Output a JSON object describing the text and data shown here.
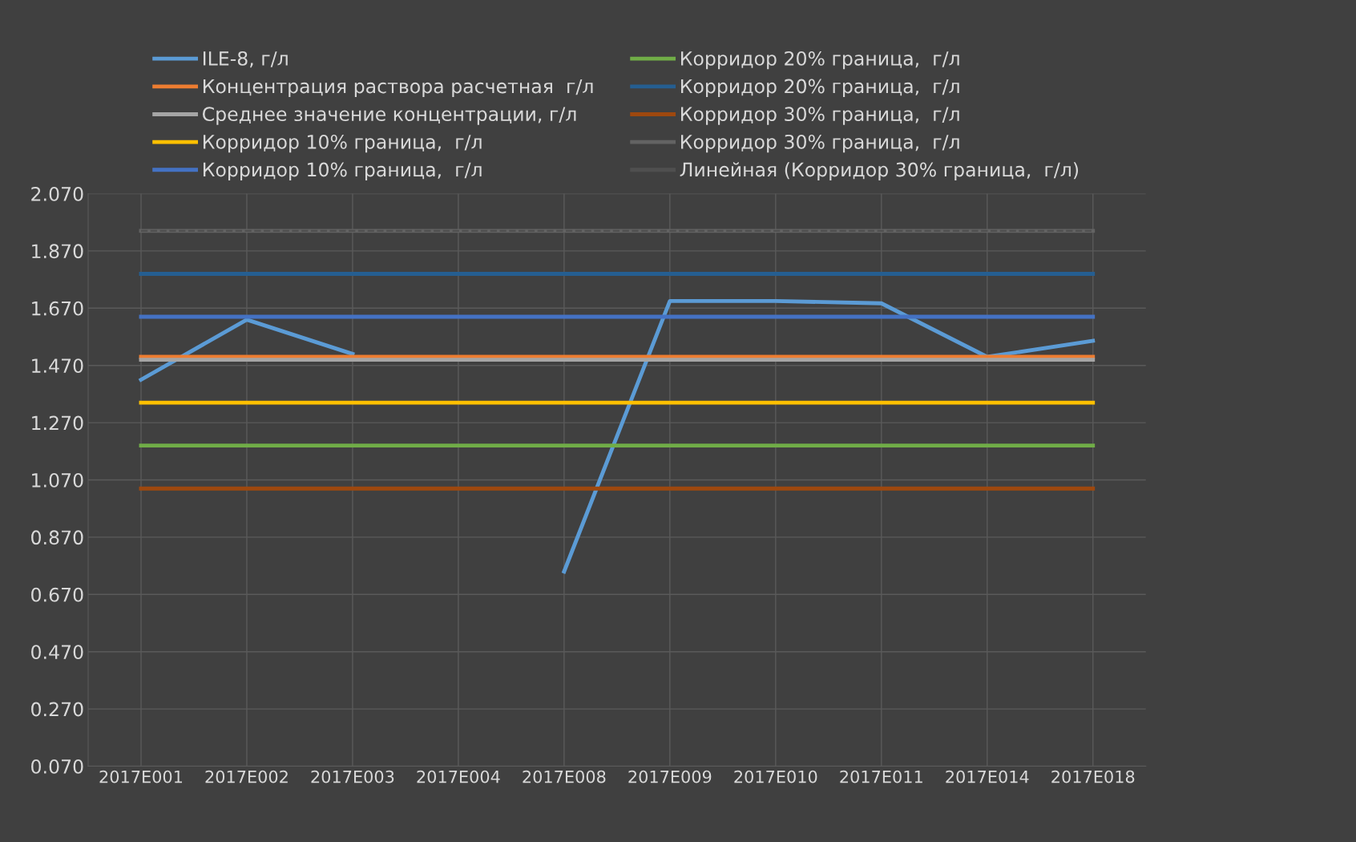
{
  "chart_data": {
    "type": "line",
    "categories": [
      "2017E001",
      "2017E002",
      "2017E003",
      "2017E004",
      "2017E008",
      "2017E009",
      "2017E010",
      "2017E011",
      "2017E014",
      "2017E018"
    ],
    "series": [
      {
        "name": "ILE-8, г/л",
        "color": "#5b9bd5",
        "values": [
          1.42,
          1.63,
          1.51,
          null,
          0.75,
          1.695,
          1.695,
          1.687,
          1.5,
          1.556
        ]
      },
      {
        "name": "Концентрация раствора расчетная  г/л",
        "color": "#ed7d31",
        "values": [
          1.5,
          1.5,
          1.5,
          1.5,
          1.5,
          1.5,
          1.5,
          1.5,
          1.5,
          1.5
        ]
      },
      {
        "name": "Среднее значение концентрации, г/л",
        "color": "#a5a5a5",
        "values": [
          1.49,
          1.49,
          1.49,
          1.49,
          1.49,
          1.49,
          1.49,
          1.49,
          1.49,
          1.49
        ]
      },
      {
        "name": "Корридор 10% граница,  г/л",
        "color": "#ffc000",
        "values": [
          1.34,
          1.34,
          1.34,
          1.34,
          1.34,
          1.34,
          1.34,
          1.34,
          1.34,
          1.34
        ]
      },
      {
        "name": "Корридор 10% граница,  г/л",
        "color": "#4472c4",
        "values": [
          1.64,
          1.64,
          1.64,
          1.64,
          1.64,
          1.64,
          1.64,
          1.64,
          1.64,
          1.64
        ]
      },
      {
        "name": "Корридор 20% граница,  г/л",
        "color": "#70ad47",
        "values": [
          1.19,
          1.19,
          1.19,
          1.19,
          1.19,
          1.19,
          1.19,
          1.19,
          1.19,
          1.19
        ]
      },
      {
        "name": "Корридор 20% граница,  г/л",
        "color": "#255e91",
        "values": [
          1.79,
          1.79,
          1.79,
          1.79,
          1.79,
          1.79,
          1.79,
          1.79,
          1.79,
          1.79
        ]
      },
      {
        "name": "Корридор 30% граница,  г/л",
        "color": "#9e480e",
        "values": [
          1.04,
          1.04,
          1.04,
          1.04,
          1.04,
          1.04,
          1.04,
          1.04,
          1.04,
          1.04
        ]
      },
      {
        "name": "Корридор 30% граница,  г/л",
        "color": "#636363",
        "values": [
          1.94,
          1.94,
          1.94,
          1.94,
          1.94,
          1.94,
          1.94,
          1.94,
          1.94,
          1.94
        ]
      },
      {
        "name": "Линейная (Корридор 30% граница,  г/л)",
        "color": "#4f4f4f",
        "line_style": "dashed",
        "values": [
          1.94,
          1.94,
          1.94,
          1.94,
          1.94,
          1.94,
          1.94,
          1.94,
          1.94,
          1.94
        ]
      }
    ],
    "ylim": [
      0.07,
      2.07
    ],
    "yticks": [
      {
        "value": 0.07,
        "label": "0.070"
      },
      {
        "value": 0.27,
        "label": "0.270"
      },
      {
        "value": 0.47,
        "label": "0.470"
      },
      {
        "value": 0.67,
        "label": "0.670"
      },
      {
        "value": 0.87,
        "label": "0.870"
      },
      {
        "value": 1.07,
        "label": "1.070"
      },
      {
        "value": 1.27,
        "label": "1.270"
      },
      {
        "value": 1.47,
        "label": "1.470"
      },
      {
        "value": 1.67,
        "label": "1.670"
      },
      {
        "value": 1.87,
        "label": "1.870"
      },
      {
        "value": 2.07,
        "label": "2.070"
      }
    ],
    "grid": true,
    "legend": "top",
    "marker": "none",
    "line_style": "solid"
  }
}
